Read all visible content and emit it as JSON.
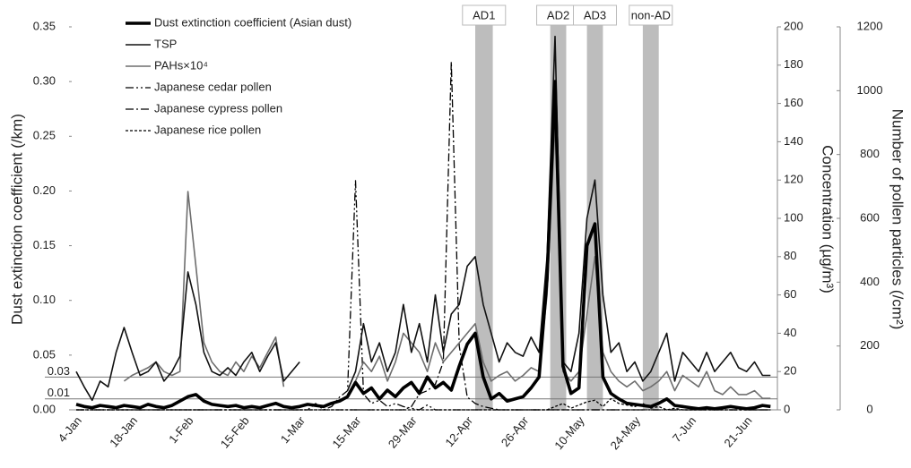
{
  "chart_data": {
    "type": "line",
    "y_label": "Dust extinction coefficient (/km)",
    "y2_label": "Concentration (µg/m³)",
    "y3_label": "Number of pollen particles (/cm²)",
    "categories": [
      "4-Jan",
      null,
      null,
      null,
      null,
      null,
      null,
      "18-Jan",
      null,
      null,
      null,
      null,
      null,
      null,
      "1-Feb",
      null,
      null,
      null,
      null,
      null,
      null,
      "15-Feb",
      null,
      null,
      null,
      null,
      null,
      null,
      "1-Mar",
      null,
      null,
      null,
      null,
      null,
      null,
      "15-Mar",
      null,
      null,
      null,
      null,
      null,
      null,
      "29-Mar",
      null,
      null,
      null,
      null,
      null,
      null,
      "12-Apr",
      null,
      null,
      null,
      null,
      null,
      null,
      "26-Apr",
      null,
      null,
      null,
      null,
      null,
      null,
      "10-May",
      null,
      null,
      null,
      null,
      null,
      null,
      "24-May",
      null,
      null,
      null,
      null,
      null,
      null,
      "7-Jun",
      null,
      null,
      null,
      null,
      null,
      null,
      "21-Jun",
      null,
      null,
      null
    ],
    "ylim": [
      0,
      0.35
    ],
    "yticks": [
      {
        "value": 0,
        "label": "0.00"
      },
      0.05,
      {
        "value": 0.1,
        "label": "0.10"
      },
      0.15,
      {
        "value": 0.2,
        "label": "0.20"
      },
      0.25,
      {
        "value": 0.3,
        "label": "0.30"
      },
      0.35
    ],
    "y2lim": [
      0,
      200
    ],
    "y2ticks": [
      0,
      20,
      40,
      60,
      80,
      100,
      120,
      140,
      160,
      180,
      200
    ],
    "y3lim": [
      0,
      1200
    ],
    "y3ticks": [
      0,
      200,
      400,
      600,
      800,
      1000,
      1200
    ],
    "reference_lines": [
      0.03,
      0.01
    ],
    "span_labels": [
      "AD1",
      "AD2",
      "AD3",
      "non-AD"
    ],
    "legend": "upper left",
    "series": [
      {
        "name": "Dust extinction coefficient (Asian dust)",
        "color": "#000000",
        "style": "thick",
        "values": [
          0.005,
          0.003,
          0.002,
          0.004,
          0.003,
          0.002,
          0.004,
          0.003,
          0.002,
          0.005,
          0.003,
          0.002,
          0.004,
          0.008,
          0.012,
          0.014,
          0.008,
          0.005,
          0.004,
          0.003,
          0.004,
          0.002,
          0.003,
          0.002,
          0.004,
          0.006,
          0.003,
          0.002,
          0.003,
          0.005,
          0.004,
          0.003,
          0.006,
          0.008,
          0.012,
          0.025,
          0.015,
          0.02,
          0.01,
          0.018,
          0.012,
          0.02,
          0.025,
          0.015,
          0.03,
          0.02,
          0.025,
          0.018,
          0.04,
          0.06,
          0.07,
          0.03,
          0.01,
          0.015,
          0.008,
          0.01,
          0.012,
          0.02,
          0.03,
          0.12,
          0.3,
          0.04,
          0.015,
          0.02,
          0.15,
          0.17,
          0.03,
          0.015,
          0.01,
          0.006,
          0.005,
          0.004,
          0.003,
          0.006,
          0.01,
          0.004,
          0.003,
          0.002,
          0.001,
          0.002,
          0.001,
          0.002,
          0.003,
          0.002,
          0.001,
          0.002,
          0.004,
          0.003
        ]
      },
      {
        "name": "TSP",
        "color": "#111111",
        "style": "solid",
        "axis": "y2",
        "values": [
          20,
          12,
          5,
          15,
          12,
          30,
          43,
          30,
          18,
          20,
          25,
          15,
          20,
          28,
          72,
          55,
          30,
          20,
          18,
          22,
          18,
          25,
          30,
          20,
          28,
          35,
          15,
          20,
          25,
          null,
          null,
          null,
          null,
          null,
          10,
          20,
          45,
          25,
          35,
          20,
          30,
          55,
          30,
          45,
          25,
          60,
          30,
          50,
          55,
          75,
          80,
          55,
          40,
          25,
          35,
          30,
          28,
          38,
          30,
          80,
          195,
          25,
          20,
          40,
          100,
          120,
          60,
          30,
          35,
          20,
          25,
          15,
          20,
          30,
          40,
          15,
          30,
          25,
          20,
          30,
          20,
          25,
          30,
          22,
          20,
          25,
          18,
          18
        ]
      },
      {
        "name": "PAHs×10⁴",
        "color": "#6e6e6e",
        "style": "solid",
        "axis": "y2",
        "values": [
          null,
          null,
          null,
          null,
          null,
          null,
          15,
          18,
          20,
          22,
          25,
          20,
          18,
          20,
          114,
          75,
          35,
          25,
          20,
          18,
          25,
          20,
          28,
          22,
          30,
          38,
          12,
          null,
          null,
          null,
          null,
          null,
          null,
          null,
          8,
          15,
          25,
          20,
          28,
          15,
          25,
          40,
          35,
          30,
          20,
          35,
          25,
          30,
          35,
          40,
          45,
          25,
          15,
          18,
          20,
          15,
          18,
          22,
          20,
          60,
          150,
          20,
          15,
          20,
          50,
          80,
          30,
          20,
          15,
          12,
          15,
          10,
          12,
          15,
          20,
          10,
          18,
          15,
          12,
          20,
          10,
          8,
          12,
          8,
          8,
          10,
          6,
          6
        ]
      },
      {
        "name": "Japanese cedar pollen",
        "color": "#000000",
        "style": "dash-dot-dot",
        "axis": "y3",
        "values": [
          0,
          0,
          0,
          0,
          0,
          0,
          0,
          0,
          0,
          0,
          0,
          0,
          0,
          0,
          0,
          0,
          0,
          0,
          0,
          0,
          0,
          0,
          0,
          0,
          0,
          0,
          0,
          0,
          0,
          0,
          20,
          0,
          10,
          40,
          60,
          718,
          50,
          20,
          30,
          10,
          20,
          10,
          5,
          0,
          15,
          0,
          0,
          0,
          0,
          0,
          0,
          0,
          0,
          0,
          0,
          0,
          0,
          0,
          0,
          0,
          0,
          0,
          0,
          0,
          0,
          0,
          0,
          0,
          0,
          0,
          0,
          0,
          0,
          0,
          0,
          0,
          0,
          0,
          0,
          0,
          0,
          0,
          0,
          0,
          0,
          0,
          0,
          0
        ]
      },
      {
        "name": "Japanese cypress pollen",
        "color": "#000000",
        "style": "dash-dot",
        "axis": "y3",
        "values": [
          0,
          0,
          0,
          0,
          0,
          0,
          0,
          0,
          0,
          0,
          0,
          0,
          0,
          0,
          0,
          0,
          0,
          0,
          0,
          0,
          0,
          0,
          0,
          0,
          0,
          0,
          0,
          0,
          0,
          0,
          0,
          0,
          0,
          0,
          0,
          0,
          0,
          0,
          0,
          0,
          0,
          0,
          10,
          50,
          60,
          80,
          150,
          1090,
          200,
          40,
          20,
          10,
          5,
          0,
          0,
          0,
          0,
          0,
          0,
          0,
          0,
          0,
          0,
          0,
          0,
          0,
          0,
          0,
          0,
          0,
          0,
          0,
          0,
          0,
          0,
          0,
          0,
          0,
          0,
          0,
          0,
          0,
          0,
          0,
          0,
          0,
          0,
          0
        ]
      },
      {
        "name": "Japanese rice pollen",
        "color": "#000000",
        "style": "dashed",
        "axis": "y3",
        "values": [
          0,
          0,
          0,
          0,
          0,
          0,
          0,
          0,
          0,
          0,
          0,
          0,
          0,
          0,
          0,
          0,
          0,
          0,
          0,
          0,
          0,
          0,
          0,
          0,
          0,
          0,
          0,
          0,
          0,
          0,
          0,
          0,
          0,
          0,
          0,
          0,
          0,
          0,
          0,
          0,
          0,
          0,
          0,
          0,
          0,
          0,
          0,
          0,
          0,
          0,
          0,
          0,
          0,
          0,
          0,
          0,
          0,
          0,
          0,
          0,
          10,
          20,
          5,
          15,
          25,
          30,
          10,
          35,
          20,
          15,
          10,
          20,
          5,
          10,
          0,
          5,
          0,
          0,
          0,
          0,
          0,
          0,
          0,
          0,
          0,
          0,
          0,
          0
        ]
      }
    ]
  }
}
